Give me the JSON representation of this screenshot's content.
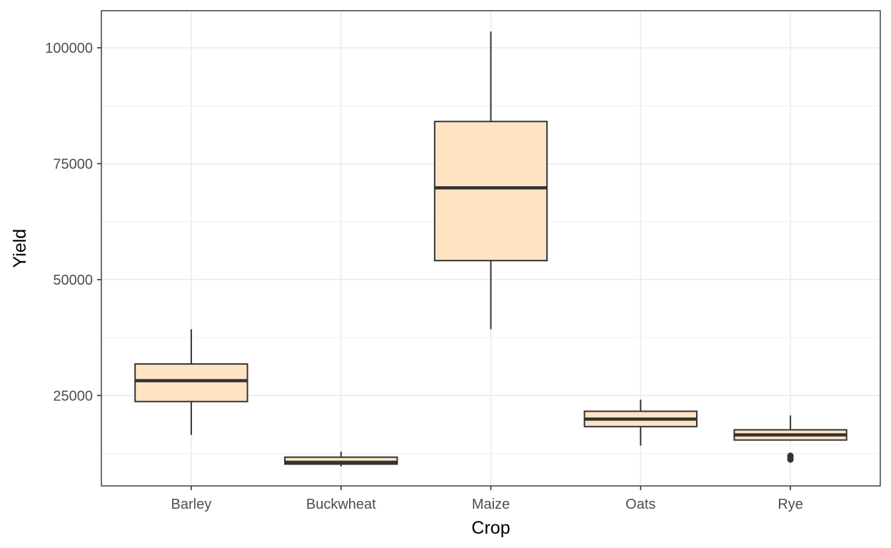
{
  "chart_data": {
    "type": "boxplot",
    "xlabel": "Crop",
    "ylabel": "Yield",
    "ylim": [
      5500,
      108000
    ],
    "yticks": [
      25000,
      50000,
      75000,
      100000
    ],
    "yticks_minor": [
      12500,
      37500,
      62500,
      87500
    ],
    "grid": true,
    "colors": {
      "box_fill": "#ffe4c4",
      "box_stroke": "#333333",
      "grid": "#ebebeb"
    },
    "categories": [
      "Barley",
      "Buckwheat",
      "Maize",
      "Oats",
      "Rye"
    ],
    "boxes": [
      {
        "category": "Barley",
        "min": 16500,
        "q1": 23700,
        "median": 28200,
        "q3": 31800,
        "max": 39300,
        "outliers": []
      },
      {
        "category": "Buckwheat",
        "min": 9700,
        "q1": 10200,
        "median": 10600,
        "q3": 11700,
        "max": 12900,
        "outliers": []
      },
      {
        "category": "Maize",
        "min": 39300,
        "q1": 54100,
        "median": 69800,
        "q3": 84100,
        "max": 103500,
        "outliers": []
      },
      {
        "category": "Oats",
        "min": 14200,
        "q1": 18300,
        "median": 19900,
        "q3": 21600,
        "max": 24100,
        "outliers": []
      },
      {
        "category": "Rye",
        "min": 15400,
        "q1": 15400,
        "median": 16500,
        "q3": 17600,
        "max": 20700,
        "outliers": [
          11200,
          11600,
          12000
        ]
      }
    ]
  }
}
